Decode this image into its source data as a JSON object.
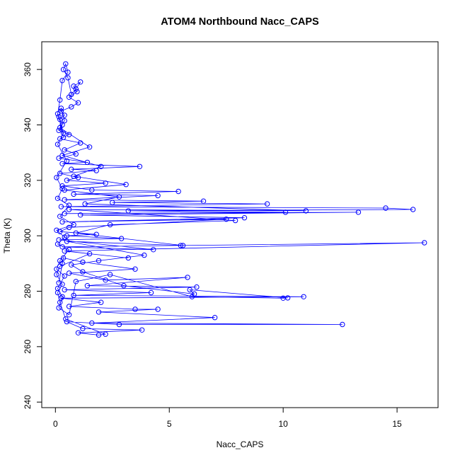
{
  "chart_data": {
    "type": "scatter",
    "title": "ATOM4 Northbound Nacc_CAPS",
    "xlabel": "Nacc_CAPS",
    "ylabel": "Theta (K)",
    "xlim": [
      -0.6,
      16.8
    ],
    "ylim": [
      238,
      370
    ],
    "xticks": [
      0,
      5,
      10,
      15
    ],
    "yticks": [
      240,
      260,
      280,
      300,
      320,
      340,
      360
    ],
    "grid": false,
    "color": "#0000ff",
    "series": [
      {
        "points": [
          [
            0.3,
            290.0
          ],
          [
            0.15,
            283.0
          ],
          [
            0.35,
            292.0
          ],
          [
            1.2,
            290.5
          ],
          [
            3.5,
            288.0
          ],
          [
            0.6,
            286.5
          ],
          [
            2.2,
            284.0
          ],
          [
            5.8,
            285.0
          ],
          [
            1.4,
            282.0
          ],
          [
            6.2,
            281.5
          ],
          [
            0.4,
            280.5
          ],
          [
            4.2,
            279.5
          ],
          [
            0.8,
            278.5
          ],
          [
            10.9,
            278.0
          ],
          [
            0.25,
            277.5
          ],
          [
            2.0,
            276.0
          ],
          [
            0.6,
            274.5
          ],
          [
            3.5,
            273.5
          ],
          [
            4.5,
            273.5
          ],
          [
            1.9,
            272.5
          ],
          [
            7.0,
            270.5
          ],
          [
            1.6,
            268.5
          ],
          [
            12.6,
            268.0
          ],
          [
            2.8,
            268.0
          ],
          [
            0.5,
            269.0
          ],
          [
            1.2,
            266.5
          ],
          [
            3.8,
            266.0
          ],
          [
            1.0,
            265.0
          ],
          [
            1.9,
            264.2
          ],
          [
            2.2,
            264.5
          ],
          [
            0.45,
            270.0
          ],
          [
            0.2,
            276.0
          ],
          [
            0.1,
            279.5
          ],
          [
            0.3,
            282.5
          ],
          [
            0.05,
            286.0
          ],
          [
            0.2,
            289.0
          ],
          [
            1.5,
            293.5
          ],
          [
            3.2,
            292.0
          ],
          [
            0.4,
            294.5
          ],
          [
            16.2,
            297.5
          ],
          [
            5.5,
            296.5
          ],
          [
            0.3,
            296.0
          ],
          [
            4.3,
            295.0
          ],
          [
            0.15,
            298.5
          ],
          [
            2.9,
            299.0
          ],
          [
            0.5,
            300.0
          ],
          [
            1.8,
            300.5
          ],
          [
            0.2,
            301.5
          ],
          [
            0.6,
            303.0
          ],
          [
            7.5,
            306.0
          ],
          [
            0.3,
            305.0
          ],
          [
            8.3,
            306.5
          ],
          [
            1.1,
            307.5
          ],
          [
            13.3,
            308.5
          ],
          [
            0.4,
            308.0
          ],
          [
            10.1,
            308.5
          ],
          [
            3.2,
            309.0
          ],
          [
            15.7,
            309.5
          ],
          [
            14.5,
            310.0
          ],
          [
            0.25,
            310.5
          ],
          [
            9.3,
            311.5
          ],
          [
            2.5,
            312.0
          ],
          [
            6.5,
            312.5
          ],
          [
            0.4,
            313.0
          ],
          [
            4.5,
            314.5
          ],
          [
            0.8,
            315.0
          ],
          [
            5.4,
            316.0
          ],
          [
            1.6,
            316.5
          ],
          [
            0.3,
            318.0
          ],
          [
            2.2,
            319.0
          ],
          [
            0.5,
            320.0
          ],
          [
            1.0,
            321.0
          ],
          [
            0.2,
            322.5
          ],
          [
            1.8,
            323.5
          ],
          [
            0.7,
            324.0
          ],
          [
            3.7,
            325.0
          ],
          [
            0.3,
            326.0
          ],
          [
            1.4,
            326.5
          ],
          [
            0.15,
            328.0
          ],
          [
            0.9,
            329.5
          ],
          [
            0.4,
            331.0
          ],
          [
            1.1,
            333.5
          ],
          [
            0.2,
            335.0
          ],
          [
            0.6,
            336.5
          ],
          [
            0.15,
            338.0
          ],
          [
            0.3,
            340.0
          ],
          [
            0.2,
            342.0
          ],
          [
            0.4,
            343.5
          ],
          [
            0.25,
            345.0
          ],
          [
            0.7,
            346.5
          ],
          [
            1.0,
            348.0
          ],
          [
            0.6,
            350.0
          ],
          [
            0.95,
            352.0
          ],
          [
            0.8,
            354.0
          ],
          [
            1.1,
            355.5
          ],
          [
            0.9,
            353.0
          ],
          [
            0.7,
            351.0
          ],
          [
            0.55,
            357.0
          ],
          [
            0.35,
            360.0
          ],
          [
            0.45,
            362.0
          ],
          [
            0.55,
            359.0
          ],
          [
            0.3,
            356.0
          ],
          [
            0.2,
            349.0
          ],
          [
            0.1,
            344.0
          ],
          [
            0.35,
            337.0
          ],
          [
            0.1,
            333.0
          ],
          [
            0.5,
            327.0
          ],
          [
            0.05,
            321.0
          ],
          [
            0.3,
            317.0
          ],
          [
            0.1,
            313.5
          ],
          [
            0.6,
            311.0
          ],
          [
            0.2,
            307.0
          ],
          [
            0.8,
            304.0
          ],
          [
            0.05,
            302.0
          ],
          [
            0.4,
            299.5
          ],
          [
            0.1,
            297.0
          ],
          [
            0.6,
            295.0
          ],
          [
            0.2,
            291.0
          ],
          [
            0.05,
            288.0
          ],
          [
            0.4,
            285.5
          ],
          [
            0.1,
            281.0
          ],
          [
            0.3,
            278.0
          ],
          [
            0.15,
            274.0
          ],
          [
            0.6,
            271.5
          ],
          [
            0.9,
            283.5
          ],
          [
            2.4,
            286.0
          ],
          [
            6.0,
            278.0
          ],
          [
            10.0,
            277.5
          ],
          [
            10.2,
            277.6
          ],
          [
            5.9,
            280.5
          ],
          [
            6.1,
            279.0
          ],
          [
            3.0,
            282.0
          ],
          [
            1.2,
            287.0
          ],
          [
            0.7,
            289.5
          ],
          [
            1.9,
            291.0
          ],
          [
            3.9,
            293.0
          ],
          [
            0.5,
            298.0
          ],
          [
            5.6,
            296.5
          ],
          [
            0.9,
            301.0
          ],
          [
            2.4,
            304.0
          ],
          [
            7.9,
            305.5
          ],
          [
            0.6,
            309.5
          ],
          [
            11.0,
            309.0
          ],
          [
            1.3,
            311.5
          ],
          [
            2.8,
            314.0
          ],
          [
            0.4,
            316.5
          ],
          [
            3.1,
            318.5
          ],
          [
            0.8,
            321.5
          ],
          [
            2.0,
            325.0
          ],
          [
            0.3,
            329.0
          ],
          [
            1.5,
            332.0
          ],
          [
            0.2,
            339.0
          ],
          [
            0.4,
            341.5
          ],
          [
            0.25,
            346.0
          ],
          [
            0.15,
            343.0
          ],
          [
            0.35,
            335.5
          ]
        ]
      }
    ]
  }
}
